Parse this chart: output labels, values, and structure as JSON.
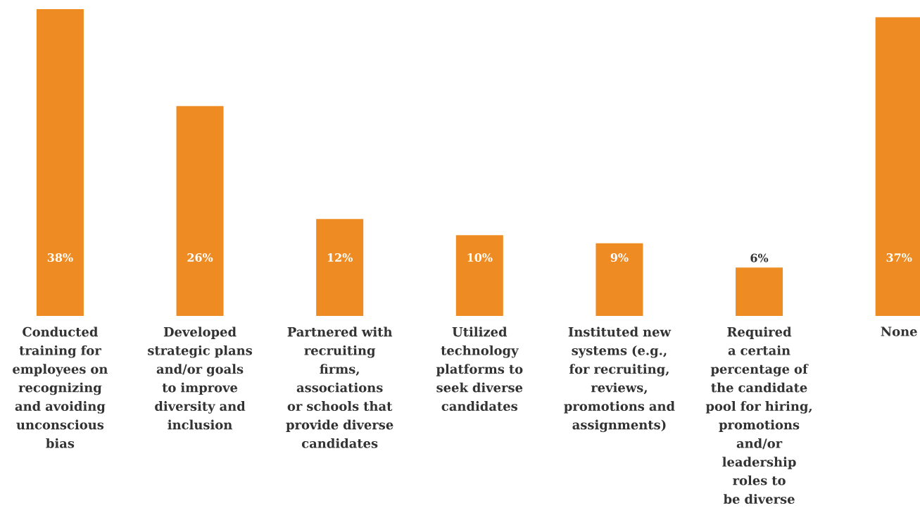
{
  "chart_data": {
    "type": "bar",
    "categories": [
      "Conducted training for employees on recognizing and avoiding unconscious bias",
      "Developed strategic plans and/or goals to improve diversity and inclusion",
      "Partnered with recruiting firms, associations or schools that provide diverse candidates",
      "Utilized technology platforms to seek diverse candidates",
      "Instituted new systems (e.g., for recruiting, reviews, promotions and assignments)",
      "Required a certain percentage of the candidate pool for hiring, promotions and/or leadership roles to be diverse",
      "None"
    ],
    "values": [
      38,
      26,
      12,
      10,
      9,
      6,
      37
    ],
    "value_labels": [
      "38%",
      "26%",
      "12%",
      "10%",
      "9%",
      "6%",
      "37%"
    ],
    "color": "#ee8c23"
  }
}
